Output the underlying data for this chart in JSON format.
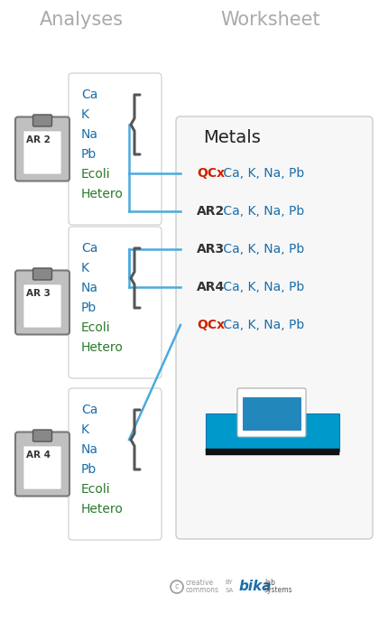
{
  "title_analyses": "Analyses",
  "title_worksheet": "Worksheet",
  "title_color": "#aaaaaa",
  "bg_color": "#ffffff",
  "analyses_blue": [
    "Ca",
    "K",
    "Na",
    "Pb"
  ],
  "analyses_green": [
    "Ecoli",
    "Hetero"
  ],
  "worksheet_title": "Metals",
  "worksheet_rows": [
    {
      "label": "QCx",
      "label_color": "#cc2200",
      "text": "Ca, K, Na, Pb"
    },
    {
      "label": "AR2",
      "label_color": "#333333",
      "text": "Ca, K, Na, Pb"
    },
    {
      "label": "AR3",
      "label_color": "#333333",
      "text": "Ca, K, Na, Pb"
    },
    {
      "label": "AR4",
      "label_color": "#333333",
      "text": "Ca, K, Na, Pb"
    },
    {
      "label": "QCx",
      "label_color": "#cc2200",
      "text": "Ca, K, Na, Pb"
    }
  ],
  "ar_labels": [
    "AR 2",
    "AR 3",
    "AR 4"
  ],
  "blue_color": "#1a6eaa",
  "green_color": "#2a7a2a",
  "bracket_color": "#555555",
  "connector_color": "#4aaadd",
  "clipboard_board_color": "#bbbbbb",
  "clipboard_edge_color": "#888888",
  "clipboard_clip_color": "#777777",
  "note_box_color": "#f5f5f5",
  "ws_box_color": "#f7f7f7",
  "ws_box_edge": "#cccccc"
}
